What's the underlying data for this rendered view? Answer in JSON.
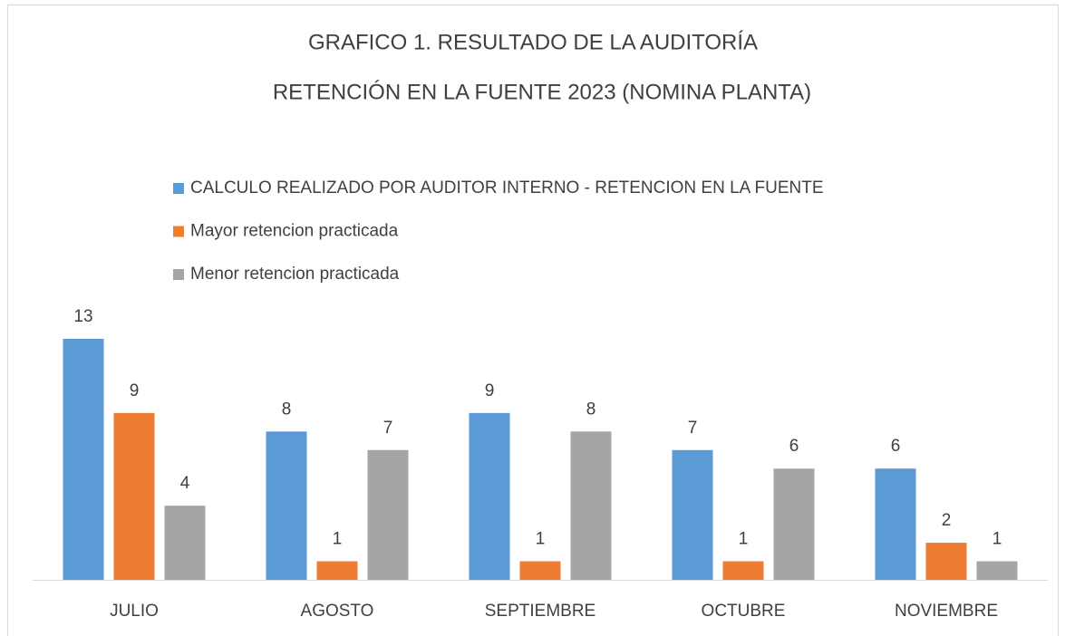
{
  "chart_data": {
    "type": "bar",
    "title": [
      "GRAFICO 1. RESULTADO DE LA AUDITORÍA",
      "RETENCIÓN EN LA FUENTE 2023 (NOMINA PLANTA)"
    ],
    "categories": [
      "JULIO",
      "AGOSTO",
      "SEPTIEMBRE",
      "OCTUBRE",
      "NOVIEMBRE"
    ],
    "series": [
      {
        "name": "CALCULO REALIZADO POR AUDITOR INTERNO - RETENCION EN LA FUENTE",
        "color": "#5b9bd5",
        "values": [
          13,
          8,
          9,
          7,
          6
        ]
      },
      {
        "name": "Mayor retencion practicada",
        "color": "#ed7d31",
        "values": [
          9,
          1,
          1,
          1,
          2
        ]
      },
      {
        "name": "Menor retencion practicada",
        "color": "#a5a5a5",
        "values": [
          4,
          7,
          8,
          6,
          1
        ]
      }
    ],
    "ylim": [
      0,
      13
    ],
    "legend": "top"
  }
}
